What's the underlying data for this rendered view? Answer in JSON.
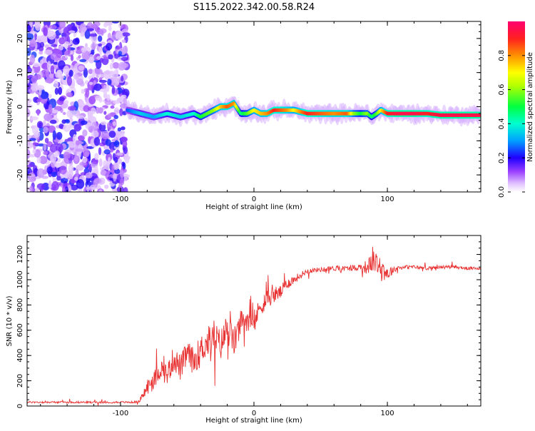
{
  "title": "S115.2022.342.00.58.R24",
  "chart_data": [
    {
      "type": "heatmap",
      "xlabel": "Height of straight line (km)",
      "ylabel": "Frequency (Hz)",
      "xlim": [
        -170,
        170
      ],
      "ylim": [
        -25,
        25
      ],
      "xticks": [
        -100,
        0,
        100
      ],
      "yticks": [
        -20,
        -10,
        0,
        10,
        20
      ],
      "colorbar": {
        "label": "Normalized spectral amplitude",
        "ticks": [
          0.0,
          0.2,
          0.4,
          0.6,
          0.8
        ],
        "range": [
          0,
          1
        ],
        "colors": [
          "#ffffff",
          "#d9b3ff",
          "#8000ff",
          "#0000ff",
          "#00c0ff",
          "#00ff40",
          "#ffff00",
          "#ff8000",
          "#ff0060"
        ]
      },
      "noise_region_x": [
        -170,
        -95
      ],
      "ridge": {
        "x": [
          -95,
          -85,
          -75,
          -65,
          -55,
          -45,
          -40,
          -35,
          -30,
          -25,
          -20,
          -15,
          -10,
          -5,
          0,
          5,
          10,
          15,
          20,
          25,
          30,
          40,
          50,
          60,
          70,
          75,
          80,
          85,
          88,
          92,
          95,
          100,
          110,
          120,
          130,
          140,
          150,
          160,
          170
        ],
        "y": [
          -1,
          -2,
          -3,
          -2,
          -3,
          -2,
          -3,
          -2,
          -1,
          0,
          0,
          1,
          -2,
          -2,
          -1,
          -2,
          -2,
          -1,
          -1,
          -1,
          -1,
          -2,
          -2,
          -2,
          -2,
          -2,
          -2,
          -2,
          -3,
          -2,
          -1,
          -2,
          -2,
          -2,
          -2,
          -2.5,
          -2.5,
          -2.5,
          -2.5
        ],
        "amplitude": [
          0.25,
          0.35,
          0.3,
          0.4,
          0.35,
          0.4,
          0.5,
          0.55,
          0.6,
          0.75,
          0.85,
          0.8,
          0.45,
          0.55,
          0.7,
          0.75,
          0.8,
          0.9,
          0.85,
          0.8,
          0.7,
          0.9,
          0.85,
          0.8,
          0.85,
          0.6,
          0.5,
          0.6,
          0.45,
          0.55,
          0.7,
          0.9,
          0.95,
          0.95,
          0.9,
          0.95,
          0.95,
          0.95,
          0.95
        ]
      }
    },
    {
      "type": "line",
      "xlabel": "Height of straight line (km)",
      "ylabel": "SNR (10 * v/v)",
      "xlim": [
        -170,
        170
      ],
      "ylim": [
        0,
        1350
      ],
      "xticks": [
        -100,
        0,
        100
      ],
      "yticks": [
        0,
        200,
        400,
        600,
        800,
        1000,
        1200
      ],
      "series": [
        {
          "color": "#e83030",
          "x": [
            -170,
            -150,
            -120,
            -100,
            -90,
            -85,
            -80,
            -75,
            -70,
            -65,
            -60,
            -55,
            -50,
            -45,
            -40,
            -35,
            -30,
            -25,
            -20,
            -15,
            -10,
            -5,
            0,
            5,
            10,
            15,
            20,
            25,
            30,
            40,
            50,
            60,
            70,
            80,
            85,
            90,
            95,
            100,
            105,
            110,
            120,
            130,
            140,
            150,
            160,
            170
          ],
          "y": [
            30,
            30,
            30,
            30,
            30,
            40,
            150,
            200,
            300,
            250,
            380,
            300,
            420,
            350,
            450,
            500,
            560,
            480,
            620,
            500,
            650,
            700,
            650,
            800,
            850,
            880,
            900,
            970,
            1000,
            1070,
            1080,
            1090,
            1090,
            1100,
            1100,
            1150,
            1100,
            1050,
            1080,
            1100,
            1100,
            1090,
            1100,
            1100,
            1090,
            1090
          ],
          "noise": [
            15,
            15,
            15,
            15,
            15,
            20,
            140,
            150,
            170,
            180,
            200,
            210,
            200,
            220,
            220,
            250,
            260,
            240,
            260,
            230,
            220,
            200,
            170,
            170,
            150,
            130,
            110,
            90,
            70,
            40,
            35,
            40,
            40,
            60,
            120,
            160,
            180,
            140,
            40,
            30,
            30,
            25,
            25,
            25,
            25,
            25
          ]
        }
      ]
    }
  ]
}
